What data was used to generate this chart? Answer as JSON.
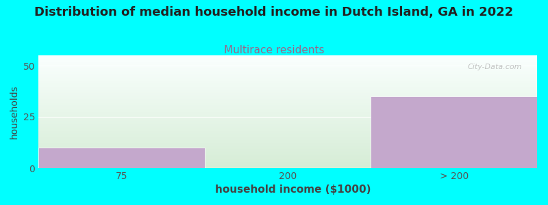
{
  "title": "Distribution of median household income in Dutch Island, GA in 2022",
  "subtitle": "Multirace residents",
  "xlabel": "household income ($1000)",
  "ylabel": "households",
  "background_color": "#00FFFF",
  "plot_bg_bottom": "#D6EDD6",
  "plot_bg_top": "#FAFFFE",
  "categories": [
    "75",
    "200",
    "> 200"
  ],
  "values": [
    10,
    0,
    35
  ],
  "bar_color": "#C4A8CC",
  "bar_edge_color": "#FFFFFF",
  "ylim": [
    0,
    55
  ],
  "yticks": [
    0,
    25,
    50
  ],
  "title_fontsize": 13,
  "title_color": "#222222",
  "subtitle_fontsize": 11,
  "subtitle_color": "#996688",
  "axis_label_color": "#444444",
  "tick_color": "#555555",
  "watermark": "City-Data.com",
  "grid_color": "#FFFFFF",
  "figsize": [
    8.0,
    3.0
  ],
  "dpi": 100
}
